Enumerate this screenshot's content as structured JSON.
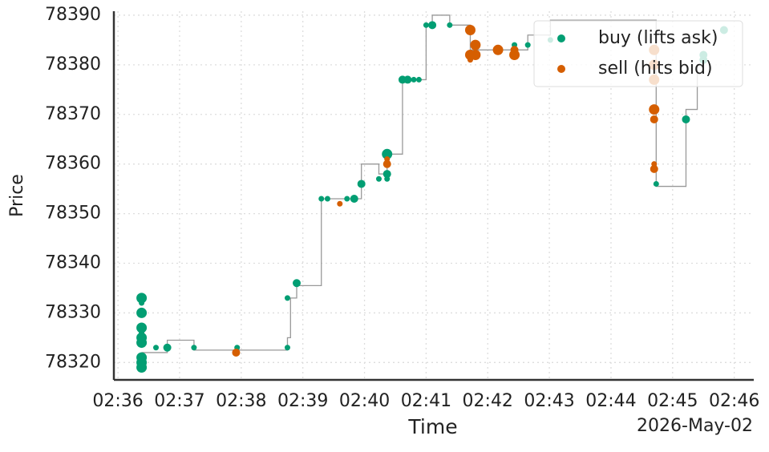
{
  "chart_data": {
    "type": "scatter",
    "xlabel": "Time",
    "ylabel": "Price",
    "x_offset_label": "2026-May-02",
    "xlim": [
      "02:35:56",
      "02:46:19"
    ],
    "xticks": [
      "02:36",
      "02:37",
      "02:38",
      "02:39",
      "02:40",
      "02:41",
      "02:42",
      "02:43",
      "02:44",
      "02:45",
      "02:46"
    ],
    "ylim": [
      78316.5,
      78390.8
    ],
    "yticks": [
      78320,
      78330,
      78340,
      78350,
      78360,
      78370,
      78380,
      78390
    ],
    "grid": true,
    "legend": "upper right",
    "step_line": {
      "color": "#999999",
      "x": [
        "02:36:23",
        "02:36:48",
        "02:37:14",
        "02:38:45",
        "02:38:48",
        "02:38:54",
        "02:39:18",
        "02:39:57",
        "02:40:14",
        "02:40:22",
        "02:40:37",
        "02:41:00",
        "02:41:06",
        "02:41:23",
        "02:41:43",
        "02:42:39",
        "02:43:01",
        "02:44:44",
        "02:45:13",
        "02:45:24",
        "02:45:30"
      ],
      "values": [
        78322,
        78324.5,
        78322.5,
        78325,
        78333,
        78335.5,
        78353,
        78360,
        78358,
        78362,
        78377,
        78388,
        78390,
        78388,
        78383,
        78386,
        78389,
        78355.5,
        78371,
        78380,
        78381
      ]
    },
    "series": [
      {
        "name": "buy (lifts ask)",
        "color": "#029e73",
        "x": [
          "02:36:23",
          "02:36:23",
          "02:36:23",
          "02:36:23",
          "02:36:23",
          "02:36:23",
          "02:36:23",
          "02:36:23",
          "02:36:23",
          "02:36:23",
          "02:36:37",
          "02:36:48",
          "02:37:14",
          "02:37:56",
          "02:38:45",
          "02:38:45",
          "02:38:54",
          "02:39:18",
          "02:39:24",
          "02:39:43",
          "02:39:50",
          "02:39:57",
          "02:40:14",
          "02:40:22",
          "02:40:22",
          "02:40:22",
          "02:40:37",
          "02:40:42",
          "02:40:48",
          "02:40:53",
          "02:41:00",
          "02:41:06",
          "02:41:23",
          "02:42:26",
          "02:42:39",
          "02:43:01",
          "02:44:44",
          "02:45:13",
          "02:45:30",
          "02:45:30",
          "02:45:50"
        ],
        "values": [
          78333,
          78332,
          78330,
          78327,
          78326,
          78325,
          78324,
          78321,
          78320,
          78319,
          78323,
          78323,
          78323,
          78323,
          78323,
          78333,
          78336,
          78353,
          78353,
          78353,
          78353,
          78356,
          78357,
          78362,
          78358,
          78357,
          78377,
          78377,
          78377,
          78377,
          78388,
          78388,
          78388,
          78384,
          78384,
          78385,
          78356,
          78369,
          78382,
          78381,
          78387
        ],
        "sizes": [
          3,
          1,
          3,
          3,
          1,
          3,
          3,
          3,
          3,
          3,
          1,
          2,
          1,
          1,
          1,
          1,
          2,
          1,
          1,
          1,
          2,
          2,
          1,
          3,
          2,
          1,
          2,
          2,
          1,
          1,
          1,
          2,
          1,
          1,
          1,
          1,
          1,
          2,
          2,
          2,
          2
        ]
      },
      {
        "name": "sell (hits bid)",
        "color": "#d55e00",
        "x": [
          "02:37:55",
          "02:39:36",
          "02:40:22",
          "02:40:22",
          "02:41:43",
          "02:41:48",
          "02:41:48",
          "02:41:43",
          "02:41:43",
          "02:42:10",
          "02:42:26",
          "02:42:26",
          "02:44:42",
          "02:44:42",
          "02:44:42",
          "02:44:42",
          "02:44:42",
          "02:44:42",
          "02:44:42"
        ],
        "values": [
          78322,
          78352,
          78360,
          78361,
          78387,
          78384,
          78382,
          78382,
          78381,
          78383,
          78383,
          78382,
          78383,
          78380,
          78377,
          78371,
          78369,
          78360,
          78359
        ],
        "sizes": [
          2,
          1,
          2,
          1,
          3,
          3,
          3,
          3,
          1,
          3,
          2,
          3,
          3,
          3,
          3,
          3,
          2,
          1,
          2
        ]
      }
    ]
  }
}
